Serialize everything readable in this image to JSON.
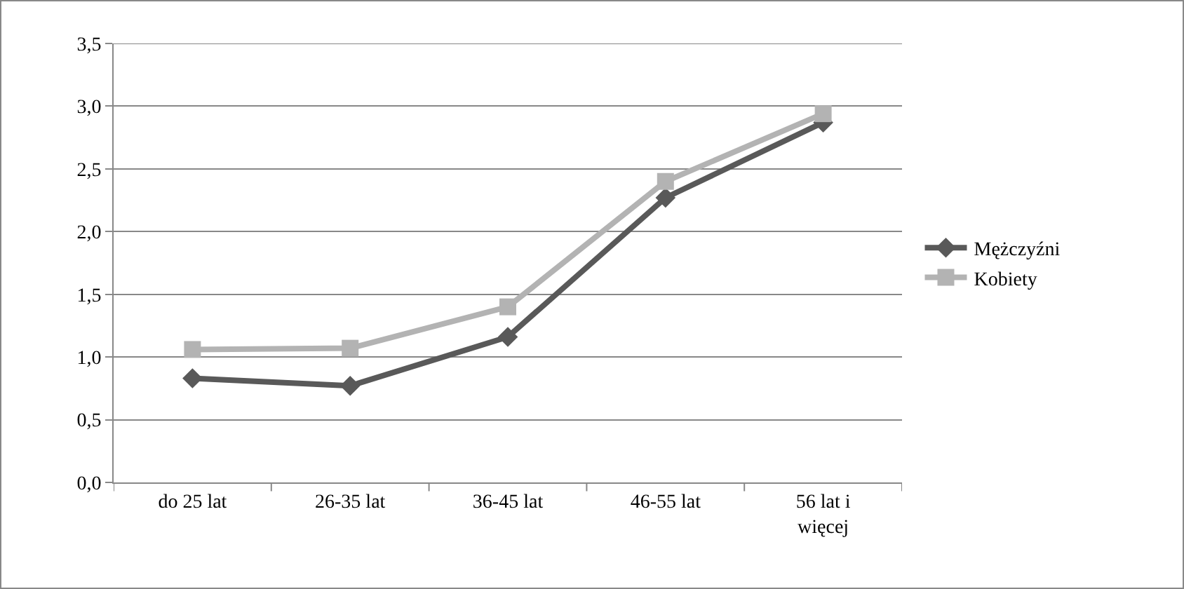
{
  "chart_data": {
    "type": "line",
    "categories": [
      "do 25 lat",
      "26-35 lat",
      "36-45 lat",
      "46-55 lat",
      "56 lat i więcej"
    ],
    "series": [
      {
        "name": "Mężczyźni",
        "color": "#595959",
        "marker": "diamond",
        "values": [
          0.83,
          0.77,
          1.16,
          2.27,
          2.87
        ]
      },
      {
        "name": "Kobiety",
        "color": "#b3b3b3",
        "marker": "square",
        "values": [
          1.06,
          1.07,
          1.4,
          2.4,
          2.94
        ]
      }
    ],
    "ylim": [
      0,
      3.5
    ],
    "yticks": [
      {
        "value": 0,
        "label": "0,0"
      },
      {
        "value": 0.5,
        "label": "0,5"
      },
      {
        "value": 1,
        "label": "1,0"
      },
      {
        "value": 1.5,
        "label": "1,5"
      },
      {
        "value": 2,
        "label": "2,0"
      },
      {
        "value": 2.5,
        "label": "2,5"
      },
      {
        "value": 3,
        "label": "3,0"
      },
      {
        "value": 3.5,
        "label": "3,5"
      }
    ],
    "grid": "y",
    "legend": "right",
    "line_style": "solid"
  }
}
